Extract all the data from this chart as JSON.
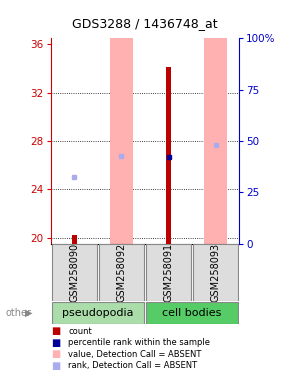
{
  "title": "GDS3288 / 1436748_at",
  "samples": [
    "GSM258090",
    "GSM258092",
    "GSM258091",
    "GSM258093"
  ],
  "groups": [
    "pseudopodia",
    "pseudopodia",
    "cell bodies",
    "cell bodies"
  ],
  "ylim_left": [
    19.5,
    36.5
  ],
  "ylim_right": [
    0,
    100
  ],
  "yticks_left": [
    20,
    24,
    28,
    32,
    36
  ],
  "yticks_right": [
    0,
    25,
    50,
    75,
    100
  ],
  "bar_color_absent": "#FFB0B0",
  "bar_color_present_red": "#BB0000",
  "count_values": [
    20.2,
    null,
    34.1,
    null
  ],
  "rank_values": [
    25.0,
    26.8,
    26.7,
    27.7
  ],
  "absent_bars": [
    false,
    true,
    false,
    true
  ],
  "rank_absent": [
    true,
    true,
    false,
    true
  ],
  "percentile_values": [
    null,
    null,
    26.7,
    null
  ],
  "legend_items": [
    {
      "color": "#BB0000",
      "label": "count"
    },
    {
      "color": "#000099",
      "label": "percentile rank within the sample"
    },
    {
      "color": "#FFB0B0",
      "label": "value, Detection Call = ABSENT"
    },
    {
      "color": "#AAAAEE",
      "label": "rank, Detection Call = ABSENT"
    }
  ],
  "left_axis_color": "#CC0000",
  "right_axis_color": "#0000CC",
  "background_color": "#ffffff",
  "group_label_fontsize": 8,
  "sample_fontsize": 7,
  "title_fontsize": 9
}
